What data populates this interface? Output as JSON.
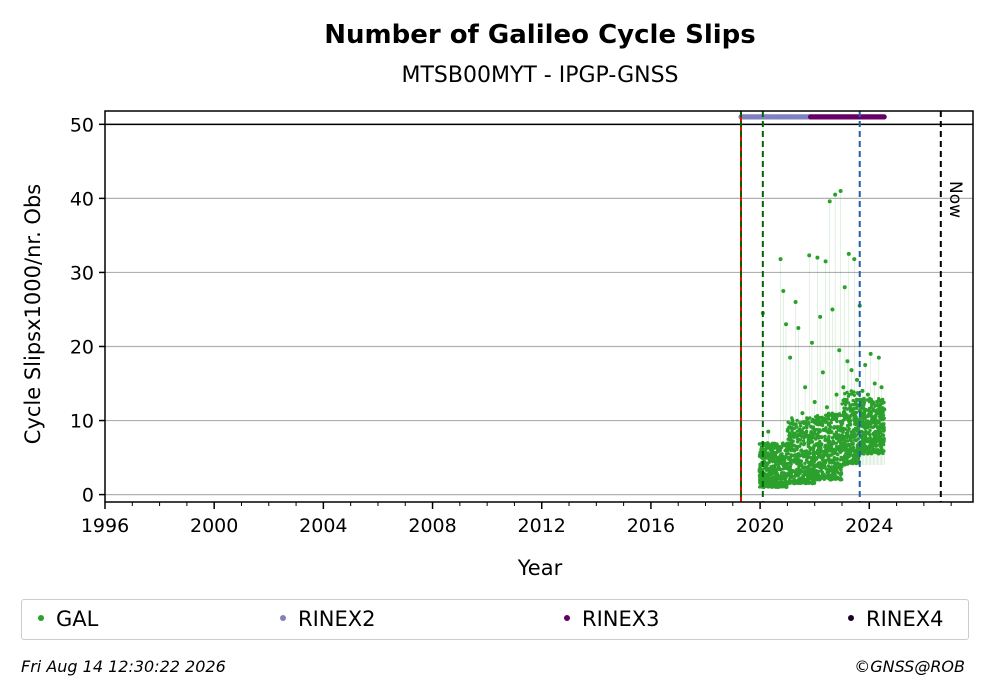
{
  "colors": {
    "gal": "#2ca02c",
    "rinex2": "#8080c0",
    "rinex3": "#660066",
    "rinex4": "#1a0022",
    "red_line": "#ff0000",
    "green_line": "#006400",
    "blue_line": "#1f5fa8",
    "now_line": "#000000",
    "grid": "#b0b0b0"
  },
  "chart_data": {
    "type": "scatter",
    "title": "Number of Galileo Cycle Slips",
    "subtitle": "MTSB00MYT - IPGP-GNSS",
    "xlabel": "Year",
    "ylabel": "Cycle Slipsx1000/nr. Obs",
    "xlim": [
      1996,
      2027.8
    ],
    "ylim": [
      -1,
      51.8
    ],
    "xticks": [
      1996,
      2000,
      2004,
      2008,
      2012,
      2016,
      2020,
      2024
    ],
    "yticks": [
      0,
      10,
      20,
      30,
      40,
      50
    ],
    "grid": "horizontal",
    "legend_placement": "bottom",
    "legend": [
      "GAL",
      "RINEX2",
      "RINEX3",
      "RINEX4"
    ],
    "vertical_lines": [
      {
        "x": 2019.3,
        "style": "solid",
        "color_key": "red_line"
      },
      {
        "x": 2019.3,
        "style": "dashed",
        "color_key": "green_line"
      },
      {
        "x": 2020.1,
        "style": "dashed",
        "color_key": "green_line"
      },
      {
        "x": 2023.65,
        "style": "dashed",
        "color_key": "blue_line"
      },
      {
        "x": 2026.62,
        "style": "dashed",
        "color_key": "now_line",
        "label": "Now"
      }
    ],
    "reference_line": {
      "y": 50
    },
    "series": [
      {
        "name": "GAL",
        "color_key": "gal",
        "points": [
          [
            2020.0,
            3.5
          ],
          [
            2020.05,
            5.2
          ],
          [
            2020.1,
            24.5
          ],
          [
            2020.15,
            2.8
          ],
          [
            2020.2,
            6.1
          ],
          [
            2020.25,
            4.0
          ],
          [
            2020.3,
            8.5
          ],
          [
            2020.35,
            3.2
          ],
          [
            2020.4,
            2.1
          ],
          [
            2020.45,
            5.5
          ],
          [
            2020.5,
            4.8
          ],
          [
            2020.55,
            3.0
          ],
          [
            2020.6,
            6.8
          ],
          [
            2020.65,
            2.5
          ],
          [
            2020.7,
            5.9
          ],
          [
            2020.75,
            31.8
          ],
          [
            2020.8,
            4.2
          ],
          [
            2020.85,
            27.5
          ],
          [
            2020.9,
            3.8
          ],
          [
            2020.95,
            23.0
          ],
          [
            2021.0,
            6.5
          ],
          [
            2021.05,
            2.9
          ],
          [
            2021.1,
            18.5
          ],
          [
            2021.15,
            4.6
          ],
          [
            2021.2,
            7.2
          ],
          [
            2021.25,
            3.1
          ],
          [
            2021.3,
            26.0
          ],
          [
            2021.35,
            5.0
          ],
          [
            2021.4,
            22.5
          ],
          [
            2021.45,
            8.8
          ],
          [
            2021.5,
            4.5
          ],
          [
            2021.55,
            11.0
          ],
          [
            2021.6,
            3.6
          ],
          [
            2021.65,
            14.5
          ],
          [
            2021.7,
            9.2
          ],
          [
            2021.75,
            5.5
          ],
          [
            2021.8,
            32.3
          ],
          [
            2021.85,
            7.5
          ],
          [
            2021.9,
            20.5
          ],
          [
            2021.95,
            6.3
          ],
          [
            2022.0,
            12.5
          ],
          [
            2022.05,
            4.8
          ],
          [
            2022.1,
            32.0
          ],
          [
            2022.15,
            9.8
          ],
          [
            2022.2,
            24.0
          ],
          [
            2022.25,
            6.8
          ],
          [
            2022.3,
            16.5
          ],
          [
            2022.35,
            4.1
          ],
          [
            2022.4,
            31.5
          ],
          [
            2022.45,
            11.8
          ],
          [
            2022.5,
            7.5
          ],
          [
            2022.55,
            39.6
          ],
          [
            2022.6,
            8.5
          ],
          [
            2022.65,
            25.0
          ],
          [
            2022.7,
            5.8
          ],
          [
            2022.75,
            40.5
          ],
          [
            2022.8,
            13.5
          ],
          [
            2022.85,
            6.2
          ],
          [
            2022.9,
            19.5
          ],
          [
            2022.95,
            41.0
          ],
          [
            2023.0,
            8.0
          ],
          [
            2023.05,
            14.5
          ],
          [
            2023.1,
            28.0
          ],
          [
            2023.15,
            5.5
          ],
          [
            2023.2,
            18.0
          ],
          [
            2023.25,
            32.5
          ],
          [
            2023.3,
            9.5
          ],
          [
            2023.35,
            16.8
          ],
          [
            2023.4,
            6.9
          ],
          [
            2023.45,
            31.8
          ],
          [
            2023.5,
            12.3
          ],
          [
            2023.55,
            15.5
          ],
          [
            2023.6,
            8.8
          ],
          [
            2023.65,
            25.5
          ],
          [
            2023.7,
            11.0
          ],
          [
            2023.75,
            14.0
          ],
          [
            2023.8,
            7.2
          ],
          [
            2023.85,
            17.5
          ],
          [
            2023.9,
            9.8
          ],
          [
            2023.95,
            13.5
          ],
          [
            2024.0,
            6.5
          ],
          [
            2024.05,
            19.0
          ],
          [
            2024.1,
            10.5
          ],
          [
            2024.15,
            8.2
          ],
          [
            2024.2,
            15.0
          ],
          [
            2024.25,
            6.0
          ],
          [
            2024.3,
            12.5
          ],
          [
            2024.35,
            18.5
          ],
          [
            2024.4,
            7.8
          ],
          [
            2024.45,
            14.5
          ],
          [
            2024.5,
            9.5
          ],
          [
            2024.55,
            11.5
          ]
        ],
        "bands": [
          {
            "x": [
              2019.97,
              2021.0
            ],
            "y_low": 1.0,
            "y_high": 7.0
          },
          {
            "x": [
              2021.0,
              2022.0
            ],
            "y_low": 1.5,
            "y_high": 10.5
          },
          {
            "x": [
              2022.0,
              2023.0
            ],
            "y_low": 2.0,
            "y_high": 11.0
          },
          {
            "x": [
              2023.0,
              2023.65
            ],
            "y_low": 4.0,
            "y_high": 14.0
          },
          {
            "x": [
              2023.65,
              2024.55
            ],
            "y_low": 5.5,
            "y_high": 13.0
          }
        ]
      },
      {
        "name": "RINEX2",
        "color_key": "rinex2",
        "marker_y": 51,
        "x_range": [
          2019.3,
          2021.85
        ]
      },
      {
        "name": "RINEX3",
        "color_key": "rinex3",
        "marker_y": 51,
        "x_range": [
          2021.85,
          2024.55
        ]
      },
      {
        "name": "RINEX4",
        "color_key": "rinex4",
        "marker_y": 51,
        "x_range": []
      }
    ]
  },
  "footer": {
    "timestamp": "Fri Aug 14 12:30:22 2026",
    "copyright": "©GNSS@ROB"
  }
}
